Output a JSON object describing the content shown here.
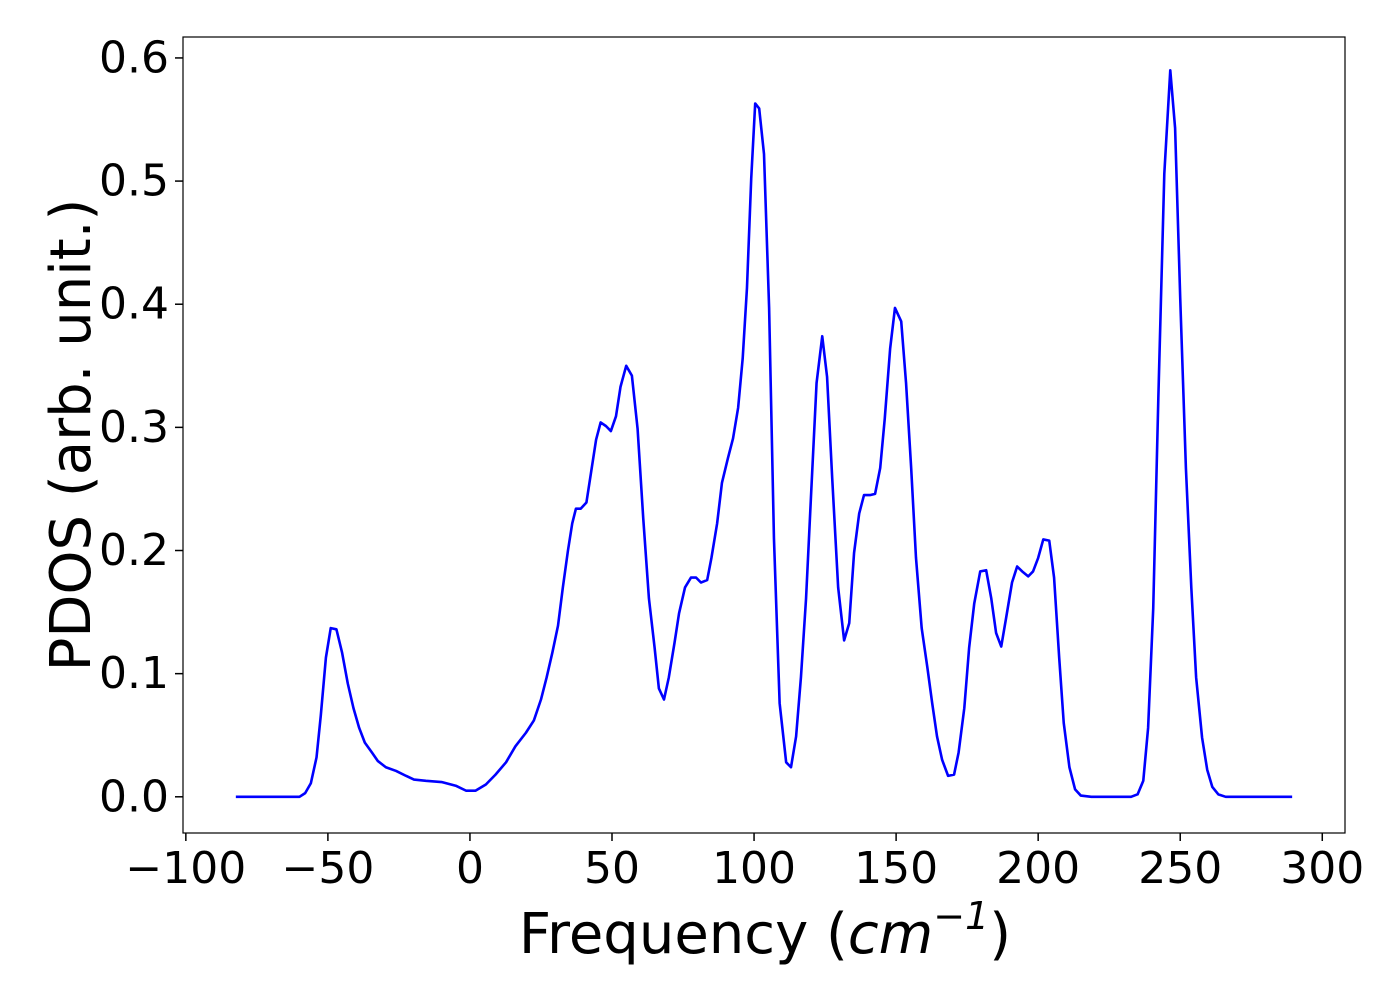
{
  "chart_data": {
    "type": "line",
    "x_label_parts": [
      "Frequency (",
      "cm",
      "−1",
      ")"
    ],
    "y_label": "PDOS (arb. unit.)",
    "xlim": [
      -101,
      308
    ],
    "ylim": [
      -0.0294,
      0.617
    ],
    "xticks": [
      {
        "value": -100,
        "label": "−100"
      },
      {
        "value": -50,
        "label": "−50"
      },
      0,
      50,
      100,
      150,
      200,
      250,
      300
    ],
    "yticks": [
      {
        "value": 0,
        "label": "0.0"
      },
      0.1,
      0.2,
      0.3,
      0.4,
      0.5,
      0.6
    ],
    "series": [
      {
        "color": "#0000ff",
        "x": [
          -82.4,
          -60,
          -58,
          -56,
          -54,
          -52.5,
          -50.7,
          -49,
          -47,
          -45,
          -43,
          -41,
          -39,
          -37,
          -34.5,
          -32.4,
          -29.6,
          -26,
          -22.5,
          -19.7,
          -15.5,
          -10,
          -5,
          -1.4,
          2,
          5.6,
          9,
          12.7,
          16,
          19.7,
          22.5,
          25,
          27,
          29,
          31,
          32.7,
          34.5,
          36,
          37.3,
          39,
          41,
          42.6,
          44.4,
          46,
          47.9,
          49.6,
          51.4,
          53,
          55,
          57,
          59,
          61,
          63,
          65,
          66.5,
          68.3,
          70,
          72,
          73.6,
          75.7,
          77.8,
          79.6,
          81.3,
          83.5,
          85,
          87,
          88.7,
          90.8,
          92.6,
          94.4,
          96,
          97.5,
          99,
          100.4,
          101.8,
          103.5,
          105.3,
          107,
          109,
          111.3,
          113,
          114.8,
          116.5,
          118.3,
          120,
          122,
          124,
          125.7,
          127.5,
          129.6,
          131.7,
          133.5,
          135.2,
          137,
          138.7,
          140.8,
          142.6,
          144.4,
          146,
          147.9,
          149.6,
          151.8,
          153.5,
          155.3,
          157,
          159,
          161,
          162.7,
          164.4,
          166.2,
          168.3,
          170.4,
          172,
          174,
          175.7,
          177.5,
          179.6,
          181.7,
          183.5,
          185.2,
          187,
          188.7,
          190.8,
          192.6,
          194.4,
          196.5,
          198.2,
          200,
          201.8,
          203.9,
          205.6,
          207.4,
          209,
          211,
          213,
          215,
          218.7,
          232.7,
          235,
          237,
          238.7,
          240.5,
          242.3,
          244.4,
          246.5,
          248.2,
          250,
          252,
          253.9,
          255.6,
          257.7,
          259.5,
          261.3,
          263.4,
          266,
          289.4
        ],
        "values": [
          0,
          0,
          0.003,
          0.011,
          0.032,
          0.066,
          0.113,
          0.137,
          0.136,
          0.117,
          0.092,
          0.072,
          0.056,
          0.044,
          0.036,
          0.029,
          0.024,
          0.021,
          0.017,
          0.014,
          0.013,
          0.012,
          0.009,
          0.005,
          0.005,
          0.01,
          0.018,
          0.028,
          0.041,
          0.052,
          0.062,
          0.079,
          0.097,
          0.117,
          0.139,
          0.17,
          0.2,
          0.222,
          0.234,
          0.234,
          0.239,
          0.263,
          0.29,
          0.304,
          0.301,
          0.297,
          0.309,
          0.333,
          0.35,
          0.342,
          0.299,
          0.226,
          0.161,
          0.121,
          0.088,
          0.079,
          0.097,
          0.125,
          0.149,
          0.17,
          0.178,
          0.178,
          0.174,
          0.176,
          0.194,
          0.222,
          0.255,
          0.275,
          0.291,
          0.316,
          0.356,
          0.413,
          0.502,
          0.563,
          0.559,
          0.522,
          0.397,
          0.21,
          0.076,
          0.028,
          0.024,
          0.049,
          0.097,
          0.161,
          0.242,
          0.336,
          0.374,
          0.341,
          0.259,
          0.17,
          0.127,
          0.141,
          0.198,
          0.23,
          0.245,
          0.245,
          0.246,
          0.267,
          0.307,
          0.364,
          0.397,
          0.386,
          0.336,
          0.267,
          0.194,
          0.137,
          0.105,
          0.076,
          0.049,
          0.03,
          0.017,
          0.018,
          0.036,
          0.072,
          0.121,
          0.157,
          0.183,
          0.184,
          0.161,
          0.133,
          0.122,
          0.145,
          0.174,
          0.187,
          0.183,
          0.179,
          0.183,
          0.194,
          0.209,
          0.208,
          0.178,
          0.113,
          0.06,
          0.024,
          0.006,
          0.001,
          0,
          0,
          0.002,
          0.013,
          0.056,
          0.153,
          0.324,
          0.506,
          0.59,
          0.543,
          0.405,
          0.267,
          0.17,
          0.097,
          0.048,
          0.022,
          0.008,
          0.002,
          0,
          0
        ]
      }
    ]
  }
}
